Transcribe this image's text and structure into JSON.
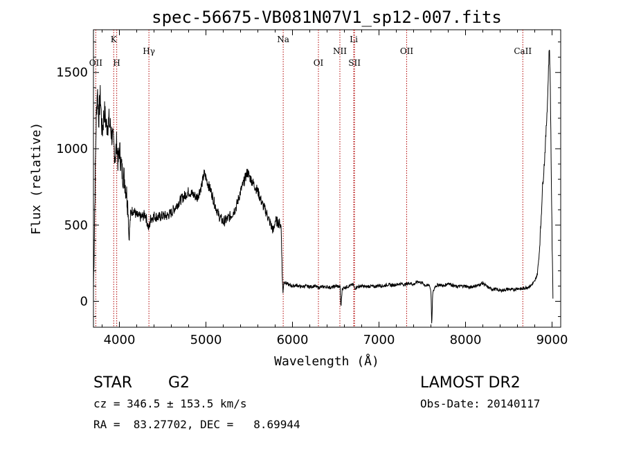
{
  "chart_data": {
    "type": "line",
    "title": "spec-56675-VB081N07V1_sp12-007.fits",
    "xlabel": "Wavelength (Å)",
    "ylabel": "Flux (relative)",
    "xlim": [
      3700,
      9100
    ],
    "ylim": [
      -170,
      1780
    ],
    "xticks": [
      4000,
      5000,
      6000,
      7000,
      8000,
      9000
    ],
    "yticks": [
      0,
      500,
      1000,
      1500
    ],
    "grid": false,
    "spectral_lines": [
      {
        "label": "OII",
        "x": 3727,
        "row": "lower"
      },
      {
        "label": "K",
        "x": 3934,
        "row": "upper"
      },
      {
        "label": "H",
        "x": 3969,
        "row": "lower"
      },
      {
        "label": "Hγ",
        "x": 4341,
        "row": "middle"
      },
      {
        "label": "Na",
        "x": 5893,
        "row": "upper"
      },
      {
        "label": "OI",
        "x": 6300,
        "row": "lower"
      },
      {
        "label": "NII",
        "x": 6548,
        "row": "middle"
      },
      {
        "label": "Li",
        "x": 6708,
        "row": "upper"
      },
      {
        "label": "SII",
        "x": 6717,
        "row": "lower"
      },
      {
        "label": "OII",
        "x": 7320,
        "row": "middle"
      },
      {
        "label": "CaII",
        "x": 8662,
        "row": "middle"
      }
    ],
    "series": [
      {
        "values": [
          [
            3700,
            80
          ],
          [
            3715,
            620
          ],
          [
            3730,
            1150
          ],
          [
            3745,
            1400
          ],
          [
            3760,
            1200
          ],
          [
            3780,
            1350
          ],
          [
            3800,
            1100
          ],
          [
            3825,
            1250
          ],
          [
            3850,
            1150
          ],
          [
            3880,
            1180
          ],
          [
            3910,
            1100
          ],
          [
            3940,
            1000
          ],
          [
            3955,
            950
          ],
          [
            3970,
            1050
          ],
          [
            3985,
            900
          ],
          [
            4000,
            1000
          ],
          [
            4030,
            850
          ],
          [
            4060,
            800
          ],
          [
            4080,
            720
          ],
          [
            4100,
            620
          ],
          [
            4110,
            400
          ],
          [
            4130,
            580
          ],
          [
            4160,
            600
          ],
          [
            4200,
            560
          ],
          [
            4250,
            550
          ],
          [
            4300,
            570
          ],
          [
            4340,
            470
          ],
          [
            4360,
            540
          ],
          [
            4400,
            560
          ],
          [
            4450,
            550
          ],
          [
            4500,
            560
          ],
          [
            4550,
            560
          ],
          [
            4600,
            580
          ],
          [
            4650,
            620
          ],
          [
            4700,
            660
          ],
          [
            4750,
            690
          ],
          [
            4800,
            720
          ],
          [
            4850,
            700
          ],
          [
            4900,
            680
          ],
          [
            4950,
            760
          ],
          [
            4980,
            840
          ],
          [
            5000,
            810
          ],
          [
            5030,
            760
          ],
          [
            5060,
            720
          ],
          [
            5100,
            640
          ],
          [
            5150,
            560
          ],
          [
            5200,
            520
          ],
          [
            5250,
            540
          ],
          [
            5300,
            570
          ],
          [
            5350,
            620
          ],
          [
            5400,
            720
          ],
          [
            5450,
            800
          ],
          [
            5480,
            850
          ],
          [
            5500,
            820
          ],
          [
            5550,
            770
          ],
          [
            5600,
            720
          ],
          [
            5650,
            640
          ],
          [
            5700,
            580
          ],
          [
            5750,
            500
          ],
          [
            5780,
            460
          ],
          [
            5800,
            530
          ],
          [
            5850,
            510
          ],
          [
            5870,
            490
          ],
          [
            5880,
            200
          ],
          [
            5890,
            50
          ],
          [
            5900,
            130
          ],
          [
            5950,
            110
          ],
          [
            6000,
            100
          ],
          [
            6050,
            105
          ],
          [
            6100,
            95
          ],
          [
            6150,
            100
          ],
          [
            6200,
            95
          ],
          [
            6250,
            100
          ],
          [
            6300,
            90
          ],
          [
            6350,
            95
          ],
          [
            6400,
            95
          ],
          [
            6450,
            90
          ],
          [
            6500,
            100
          ],
          [
            6550,
            95
          ],
          [
            6560,
            -40
          ],
          [
            6575,
            85
          ],
          [
            6600,
            90
          ],
          [
            6650,
            100
          ],
          [
            6700,
            110
          ],
          [
            6720,
            85
          ],
          [
            6750,
            95
          ],
          [
            6800,
            100
          ],
          [
            6850,
            95
          ],
          [
            6900,
            100
          ],
          [
            6950,
            95
          ],
          [
            7000,
            105
          ],
          [
            7050,
            100
          ],
          [
            7100,
            110
          ],
          [
            7150,
            105
          ],
          [
            7200,
            110
          ],
          [
            7250,
            115
          ],
          [
            7300,
            110
          ],
          [
            7350,
            120
          ],
          [
            7400,
            110
          ],
          [
            7450,
            130
          ],
          [
            7500,
            120
          ],
          [
            7550,
            100
          ],
          [
            7580,
            110
          ],
          [
            7600,
            70
          ],
          [
            7610,
            -170
          ],
          [
            7620,
            50
          ],
          [
            7650,
            100
          ],
          [
            7700,
            110
          ],
          [
            7750,
            100
          ],
          [
            7800,
            120
          ],
          [
            7850,
            105
          ],
          [
            7900,
            95
          ],
          [
            7950,
            100
          ],
          [
            8000,
            100
          ],
          [
            8050,
            90
          ],
          [
            8100,
            100
          ],
          [
            8150,
            105
          ],
          [
            8200,
            120
          ],
          [
            8250,
            95
          ],
          [
            8300,
            80
          ],
          [
            8350,
            80
          ],
          [
            8400,
            70
          ],
          [
            8450,
            75
          ],
          [
            8500,
            80
          ],
          [
            8550,
            75
          ],
          [
            8600,
            85
          ],
          [
            8650,
            80
          ],
          [
            8700,
            90
          ],
          [
            8750,
            100
          ],
          [
            8800,
            130
          ],
          [
            8830,
            180
          ],
          [
            8850,
            300
          ],
          [
            8870,
            500
          ],
          [
            8890,
            750
          ],
          [
            8910,
            900
          ],
          [
            8930,
            1100
          ],
          [
            8950,
            1350
          ],
          [
            8960,
            1550
          ],
          [
            8970,
            1680
          ],
          [
            8980,
            1400
          ],
          [
            8990,
            900
          ],
          [
            9000,
            400
          ],
          [
            9010,
            40
          ]
        ]
      }
    ]
  },
  "info": {
    "object_class": "STAR",
    "subclass": "G2",
    "survey": "LAMOST DR2",
    "velocity": "cz = 346.5 ± 153.5 km/s",
    "obs_date": "Obs-Date: 20140117",
    "coords": "RA =  83.27702, DEC =   8.69944"
  }
}
